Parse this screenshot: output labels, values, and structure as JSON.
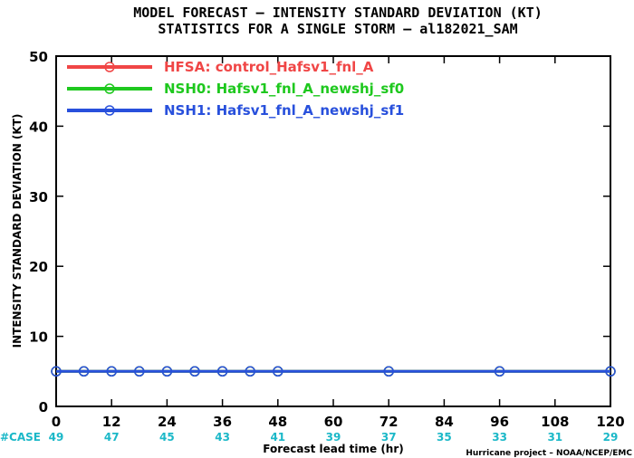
{
  "chart_data": {
    "type": "line",
    "title": "MODEL FORECAST – INTENSITY STANDARD DEVIATION (KT)",
    "subtitle": "STATISTICS FOR A SINGLE STORM – al182021_SAM",
    "xlabel": "Forecast lead time (hr)",
    "ylabel": "INTENSITY STANDARD DEVIATION (KT)",
    "xlim": [
      0,
      120
    ],
    "ylim": [
      0,
      50
    ],
    "x_ticks": [
      0,
      12,
      24,
      36,
      48,
      60,
      72,
      84,
      96,
      108,
      120
    ],
    "y_ticks": [
      0,
      10,
      20,
      30,
      40,
      50
    ],
    "legend_position": "top-left",
    "grid": false,
    "series": [
      {
        "name": "HFSA: control_Hafsv1_fnl_A",
        "color": "#f04646",
        "x": [
          0,
          6,
          12,
          18,
          24,
          30,
          36,
          42,
          48,
          72,
          96,
          120
        ],
        "y": [
          5,
          5,
          5,
          5,
          5,
          5,
          5,
          5,
          5,
          5,
          5,
          5
        ]
      },
      {
        "name": "NSH0: Hafsv1_fnl_A_newshj_sf0",
        "color": "#1ec81e",
        "x": [
          0,
          6,
          12,
          18,
          24,
          30,
          36,
          42,
          48,
          72,
          96,
          120
        ],
        "y": [
          5,
          5,
          5,
          5,
          5,
          5,
          5,
          5,
          5,
          5,
          5,
          5
        ]
      },
      {
        "name": "NSH1: Hafsv1_fnl_A_newshj_sf1",
        "color": "#2850dc",
        "x": [
          0,
          6,
          12,
          18,
          24,
          30,
          36,
          42,
          48,
          72,
          96,
          120
        ],
        "y": [
          5,
          5,
          5,
          5,
          5,
          5,
          5,
          5,
          5,
          5,
          5,
          5
        ]
      }
    ],
    "case_counts": {
      "label": "#CASE",
      "x": [
        0,
        12,
        24,
        36,
        48,
        60,
        72,
        84,
        96,
        108,
        120
      ],
      "values": [
        "49",
        "47",
        "45",
        "43",
        "41",
        "39",
        "37",
        "35",
        "33",
        "31",
        "29"
      ],
      "color": "#1bb8c8"
    }
  },
  "credit": "Hurricane project – NOAA/NCEP/EMC"
}
